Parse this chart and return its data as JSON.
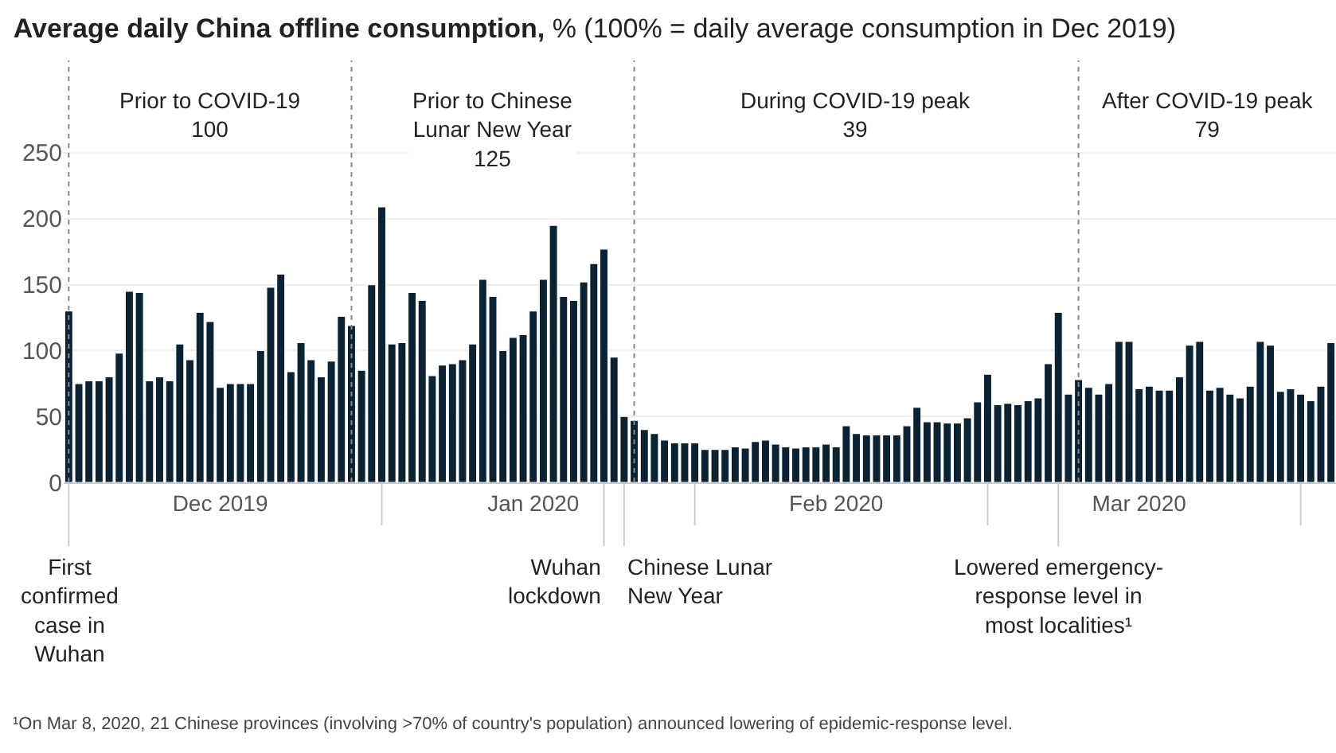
{
  "chart_data": {
    "type": "bar",
    "title": "Average daily China offline consumption,",
    "subtitle": "% (100% = daily average consumption in Dec 2019)",
    "x": [
      "2019-12-01",
      "2019-12-02",
      "2019-12-03",
      "2019-12-04",
      "2019-12-05",
      "2019-12-06",
      "2019-12-07",
      "2019-12-08",
      "2019-12-09",
      "2019-12-10",
      "2019-12-11",
      "2019-12-12",
      "2019-12-13",
      "2019-12-14",
      "2019-12-15",
      "2019-12-16",
      "2019-12-17",
      "2019-12-18",
      "2019-12-19",
      "2019-12-20",
      "2019-12-21",
      "2019-12-22",
      "2019-12-23",
      "2019-12-24",
      "2019-12-25",
      "2019-12-26",
      "2019-12-27",
      "2019-12-28",
      "2019-12-29",
      "2019-12-30",
      "2019-12-31",
      "2020-01-01",
      "2020-01-02",
      "2020-01-03",
      "2020-01-04",
      "2020-01-05",
      "2020-01-06",
      "2020-01-07",
      "2020-01-08",
      "2020-01-09",
      "2020-01-10",
      "2020-01-11",
      "2020-01-12",
      "2020-01-13",
      "2020-01-14",
      "2020-01-15",
      "2020-01-16",
      "2020-01-17",
      "2020-01-18",
      "2020-01-19",
      "2020-01-20",
      "2020-01-21",
      "2020-01-22",
      "2020-01-23",
      "2020-01-24",
      "2020-01-25",
      "2020-01-26",
      "2020-01-27",
      "2020-01-28",
      "2020-01-29",
      "2020-01-30",
      "2020-01-31",
      "2020-02-01",
      "2020-02-02",
      "2020-02-03",
      "2020-02-04",
      "2020-02-05",
      "2020-02-06",
      "2020-02-07",
      "2020-02-08",
      "2020-02-09",
      "2020-02-10",
      "2020-02-11",
      "2020-02-12",
      "2020-02-13",
      "2020-02-14",
      "2020-02-15",
      "2020-02-16",
      "2020-02-17",
      "2020-02-18",
      "2020-02-19",
      "2020-02-20",
      "2020-02-21",
      "2020-02-22",
      "2020-02-23",
      "2020-02-24",
      "2020-02-25",
      "2020-02-26",
      "2020-02-27",
      "2020-02-28",
      "2020-02-29",
      "2020-03-01",
      "2020-03-02",
      "2020-03-03",
      "2020-03-04",
      "2020-03-05",
      "2020-03-06",
      "2020-03-07",
      "2020-03-08",
      "2020-03-09",
      "2020-03-10",
      "2020-03-11",
      "2020-03-12",
      "2020-03-13",
      "2020-03-14",
      "2020-03-15",
      "2020-03-16",
      "2020-03-17",
      "2020-03-18",
      "2020-03-19",
      "2020-03-20",
      "2020-03-21",
      "2020-03-22",
      "2020-03-23",
      "2020-03-24",
      "2020-03-25",
      "2020-03-26",
      "2020-03-27",
      "2020-03-28",
      "2020-03-29",
      "2020-03-30",
      "2020-03-31",
      "2020-04-01",
      "2020-04-02",
      "2020-04-03",
      "2020-04-04"
    ],
    "values": [
      130,
      75,
      77,
      77,
      80,
      98,
      145,
      144,
      77,
      80,
      77,
      105,
      93,
      129,
      122,
      72,
      75,
      75,
      75,
      100,
      148,
      158,
      84,
      106,
      93,
      80,
      92,
      126,
      119,
      85,
      150,
      209,
      105,
      106,
      144,
      138,
      81,
      89,
      90,
      93,
      105,
      154,
      141,
      100,
      110,
      112,
      130,
      154,
      195,
      141,
      138,
      152,
      166,
      177,
      95,
      50,
      47,
      40,
      37,
      32,
      30,
      30,
      30,
      25,
      25,
      25,
      27,
      26,
      31,
      32,
      29,
      27,
      26,
      27,
      27,
      29,
      27,
      43,
      37,
      36,
      36,
      36,
      36,
      43,
      57,
      46,
      46,
      45,
      45,
      49,
      61,
      82,
      59,
      60,
      59,
      62,
      64,
      90,
      129,
      67,
      78,
      72,
      67,
      75,
      107,
      107,
      71,
      73,
      70,
      70,
      80,
      104,
      107,
      70,
      72,
      67,
      64,
      73,
      107,
      104,
      69,
      71,
      67,
      62,
      73,
      106
    ],
    "color": "#0b2233",
    "xlim": [
      "2019-11-30T12:00",
      "2020-04-04T12:00"
    ],
    "xticks": [
      {
        "value": "2019-12-16",
        "label": "Dec 2019"
      },
      {
        "value": "2020-01-16",
        "label": "Jan 2020"
      },
      {
        "value": "2020-02-15",
        "label": "Feb 2020"
      },
      {
        "value": "2020-03-16",
        "label": "Mar 2020"
      }
    ],
    "ylim": [
      0,
      320
    ],
    "yticks": [
      0,
      50,
      100,
      150,
      200,
      250
    ],
    "grid": "y",
    "ref_lines": [
      {
        "axis": "x",
        "value": "2019-12-01",
        "label": "First\nconfirmed\ncase in\nWuhan",
        "color": "#888888",
        "line_style": "dotted"
      },
      {
        "axis": "x",
        "value": "2019-12-29",
        "label": null,
        "color": "#888888",
        "line_style": "dotted"
      },
      {
        "axis": "x",
        "value": "2020-01-26",
        "label": null,
        "color": "#888888",
        "line_style": "dotted"
      },
      {
        "axis": "x",
        "value": "2020-03-10",
        "label": null,
        "color": "#888888",
        "line_style": "dotted"
      },
      {
        "axis": "x",
        "value": "2020-01-23",
        "label": "Wuhan\nlockdown",
        "color": "#cccccc",
        "line_style": "solid"
      },
      {
        "axis": "x",
        "value": "2020-01-25",
        "label": "Chinese Lunar\nNew Year",
        "color": "#cccccc",
        "line_style": "solid"
      },
      {
        "axis": "x",
        "value": "2020-03-08",
        "label": "Lowered emergency-\nresponse level in\nmost localities¹",
        "color": "#cccccc",
        "line_style": "solid"
      }
    ],
    "annotations": [
      "Prior to COVID-19\n100",
      "Prior to Chinese\nLunar New Year\n125",
      "During COVID-19 peak\n39",
      "After COVID-19 peak\n79",
      "¹On Mar 8, 2020, 21 Chinese provinces (involving >70% of country's population) announced lowering of epidemic-response level."
    ]
  }
}
